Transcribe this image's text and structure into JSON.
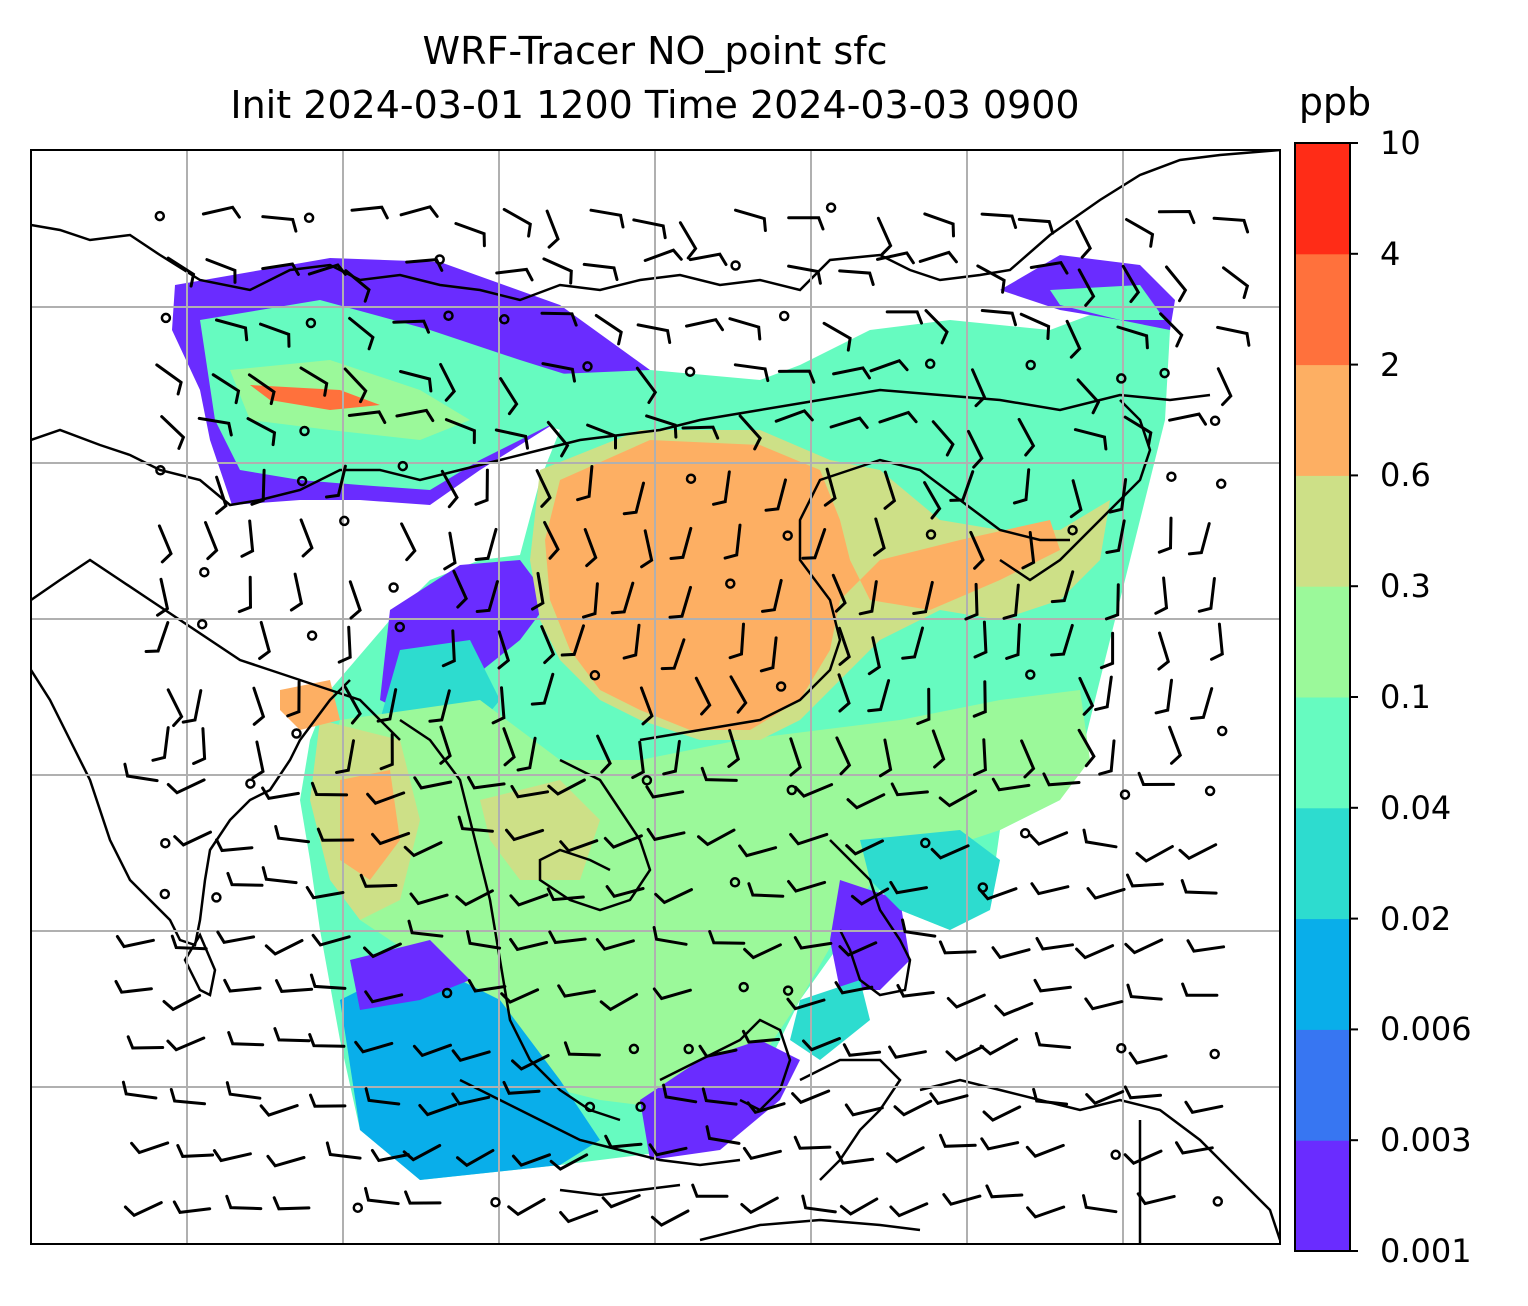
{
  "title": {
    "line1": "WRF-Tracer NO_point sfc",
    "line2": "Init 2024-03-01 1200 Time 2024-03-03 0900"
  },
  "colorbar": {
    "unit": "ppb",
    "levels": [
      "0.001",
      "0.003",
      "0.006",
      "0.02",
      "0.04",
      "0.1",
      "0.3",
      "0.6",
      "2",
      "4",
      "10"
    ],
    "colors": [
      "#6a2cff",
      "#3776f2",
      "#09aeea",
      "#2ddccf",
      "#66fbc0",
      "#9bf99a",
      "#cde087",
      "#fdaf63",
      "#ff713c",
      "#ff2c17"
    ]
  },
  "map": {
    "projection": "regional map, gridlines shown",
    "grid": true,
    "overlay": "wind barbs"
  }
}
